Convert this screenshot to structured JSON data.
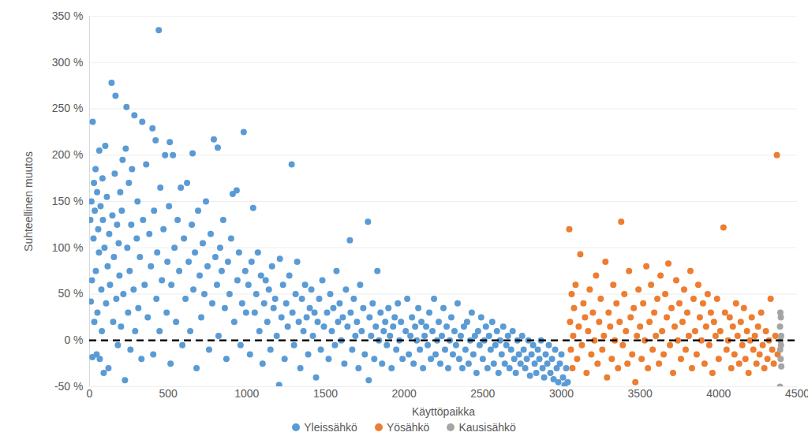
{
  "chart_data": {
    "type": "scatter",
    "x_label": "Käyttöpaikka",
    "y_label": "Suhteellinen muutos",
    "xlim": [
      0,
      4500
    ],
    "xticks": [
      0,
      500,
      1000,
      1500,
      2000,
      2500,
      3000,
      3500,
      4000,
      4500
    ],
    "ylim": [
      -50,
      350
    ],
    "yticks": [
      {
        "value": -50,
        "label": "-50 %"
      },
      {
        "value": 0,
        "label": "0 %"
      },
      {
        "value": 50,
        "label": "50 %"
      },
      {
        "value": 100,
        "label": "100 %"
      },
      {
        "value": 150,
        "label": "150 %"
      },
      {
        "value": 200,
        "label": "200 %"
      },
      {
        "value": 250,
        "label": "250 %"
      },
      {
        "value": 300,
        "label": "300 %"
      },
      {
        "value": 350,
        "label": "350 %"
      }
    ],
    "grid": true,
    "legend": "bottom",
    "series": [
      {
        "name": "Yleissähkö",
        "color": "#5b9bd5",
        "marker": "circle",
        "x": [
          5,
          8,
          12,
          15,
          18,
          20,
          25,
          28,
          30,
          33,
          38,
          40,
          45,
          48,
          50,
          55,
          60,
          62,
          65,
          70,
          75,
          78,
          82,
          85,
          90,
          95,
          100,
          105,
          110,
          115,
          120,
          125,
          130,
          140,
          145,
          150,
          155,
          160,
          165,
          170,
          175,
          180,
          185,
          190,
          195,
          200,
          205,
          210,
          215,
          225,
          230,
          235,
          240,
          245,
          250,
          255,
          260,
          265,
          270,
          280,
          285,
          290,
          300,
          305,
          310,
          320,
          330,
          335,
          340,
          350,
          360,
          370,
          380,
          390,
          400,
          405,
          410,
          420,
          425,
          430,
          440,
          445,
          450,
          460,
          470,
          480,
          490,
          495,
          505,
          510,
          515,
          520,
          530,
          540,
          550,
          560,
          570,
          580,
          590,
          600,
          610,
          620,
          630,
          640,
          650,
          655,
          660,
          670,
          680,
          690,
          700,
          710,
          720,
          730,
          740,
          750,
          760,
          770,
          780,
          790,
          800,
          810,
          815,
          820,
          830,
          840,
          850,
          860,
          870,
          880,
          890,
          900,
          910,
          920,
          935,
          940,
          950,
          960,
          970,
          980,
          990,
          995,
          1010,
          1020,
          1030,
          1040,
          1050,
          1060,
          1070,
          1080,
          1090,
          1100,
          1110,
          1120,
          1130,
          1140,
          1150,
          1160,
          1170,
          1180,
          1190,
          1205,
          1210,
          1220,
          1230,
          1240,
          1250,
          1260,
          1270,
          1285,
          1290,
          1300,
          1310,
          1320,
          1330,
          1340,
          1350,
          1360,
          1370,
          1380,
          1390,
          1400,
          1410,
          1420,
          1430,
          1440,
          1450,
          1460,
          1470,
          1480,
          1490,
          1510,
          1520,
          1530,
          1540,
          1550,
          1560,
          1570,
          1580,
          1590,
          1600,
          1610,
          1620,
          1630,
          1640,
          1655,
          1660,
          1670,
          1680,
          1690,
          1700,
          1710,
          1720,
          1730,
          1740,
          1750,
          1770,
          1775,
          1780,
          1790,
          1800,
          1810,
          1820,
          1830,
          1840,
          1850,
          1860,
          1870,
          1880,
          1890,
          1900,
          1910,
          1920,
          1930,
          1940,
          1950,
          1960,
          1970,
          1980,
          1990,
          2010,
          2020,
          2030,
          2040,
          2050,
          2060,
          2070,
          2080,
          2090,
          2100,
          2110,
          2120,
          2130,
          2140,
          2150,
          2160,
          2170,
          2180,
          2190,
          2200,
          2210,
          2220,
          2230,
          2240,
          2250,
          2260,
          2270,
          2280,
          2290,
          2300,
          2310,
          2320,
          2330,
          2340,
          2350,
          2360,
          2370,
          2380,
          2390,
          2400,
          2410,
          2420,
          2430,
          2440,
          2450,
          2460,
          2470,
          2480,
          2490,
          2500,
          2510,
          2520,
          2530,
          2540,
          2550,
          2560,
          2570,
          2580,
          2590,
          2600,
          2610,
          2620,
          2630,
          2640,
          2650,
          2660,
          2670,
          2680,
          2690,
          2700,
          2710,
          2720,
          2730,
          2740,
          2750,
          2760,
          2770,
          2780,
          2790,
          2800,
          2810,
          2820,
          2830,
          2840,
          2850,
          2860,
          2870,
          2880,
          2890,
          2900,
          2910,
          2920,
          2930,
          2940,
          2950,
          2960,
          2970,
          2980,
          2990,
          3000,
          3010,
          3020,
          3030,
          3040
        ],
        "values": [
          130,
          42,
          150,
          65,
          -18,
          236,
          110,
          170,
          20,
          140,
          185,
          75,
          -15,
          160,
          30,
          120,
          95,
          205,
          -20,
          145,
          55,
          10,
          175,
          130,
          -35,
          100,
          210,
          40,
          155,
          80,
          -30,
          115,
          60,
          278,
          135,
          20,
          90,
          180,
          264,
          45,
          125,
          -5,
          105,
          70,
          160,
          15,
          140,
          195,
          50,
          -43,
          207,
          252,
          100,
          30,
          170,
          75,
          -10,
          125,
          185,
          55,
          243,
          10,
          110,
          150,
          35,
          90,
          -20,
          236,
          130,
          60,
          190,
          25,
          115,
          80,
          229,
          -15,
          140,
          216,
          45,
          95,
          335,
          10,
          165,
          65,
          120,
          200,
          30,
          85,
          145,
          214,
          -25,
          60,
          200,
          100,
          20,
          130,
          75,
          165,
          -5,
          110,
          45,
          170,
          85,
          10,
          125,
          202,
          55,
          95,
          -30,
          140,
          70,
          25,
          105,
          50,
          150,
          80,
          -10,
          115,
          40,
          217,
          90,
          60,
          208,
          5,
          100,
          75,
          130,
          35,
          -20,
          85,
          50,
          110,
          158,
          20,
          162,
          65,
          95,
          -5,
          40,
          225,
          75,
          30,
          60,
          -15,
          85,
          143,
          30,
          50,
          95,
          10,
          70,
          -25,
          40,
          65,
          20,
          55,
          -10,
          80,
          35,
          45,
          5,
          -48,
          88,
          25,
          60,
          -20,
          40,
          15,
          70,
          190,
          30,
          -5,
          50,
          85,
          20,
          -30,
          45,
          10,
          60,
          25,
          -15,
          35,
          55,
          5,
          30,
          -40,
          20,
          45,
          -10,
          65,
          15,
          30,
          -20,
          50,
          10,
          35,
          -5,
          75,
          20,
          40,
          0,
          25,
          -25,
          55,
          15,
          108,
          30,
          -10,
          45,
          5,
          20,
          -30,
          60,
          10,
          35,
          -15,
          128,
          -43,
          25,
          5,
          40,
          -20,
          15,
          75,
          0,
          30,
          -25,
          10,
          20,
          -5,
          35,
          5,
          -30,
          15,
          25,
          -10,
          40,
          0,
          20,
          -20,
          10,
          45,
          -15,
          5,
          25,
          -25,
          15,
          0,
          35,
          -10,
          20,
          -30,
          5,
          15,
          -5,
          30,
          -20,
          10,
          45,
          -15,
          0,
          20,
          -25,
          5,
          35,
          -10,
          15,
          -30,
          0,
          25,
          -15,
          10,
          -5,
          40,
          -20,
          5,
          -30,
          15,
          -10,
          20,
          -25,
          0,
          30,
          -15,
          5,
          -35,
          10,
          -5,
          25,
          -20,
          0,
          15,
          -30,
          5,
          -10,
          20,
          -25,
          -5,
          10,
          -35,
          0,
          -15,
          15,
          -25,
          -5,
          5,
          -30,
          -10,
          10,
          -20,
          -35,
          0,
          -15,
          -25,
          5,
          -10,
          -30,
          -20,
          0,
          -38,
          -15,
          -5,
          -25,
          -35,
          -10,
          -20,
          0,
          -30,
          -40,
          -15,
          -25,
          -5,
          -35,
          -20,
          -42,
          -10,
          -30,
          -45,
          -25,
          -15,
          -40,
          -48,
          -30,
          -45
        ]
      },
      {
        "name": "Yösähkö",
        "color": "#ed7d31",
        "marker": "circle",
        "x": [
          3050,
          3055,
          3060,
          3065,
          3070,
          3075,
          3080,
          3090,
          3100,
          3110,
          3120,
          3130,
          3140,
          3150,
          3160,
          3170,
          3180,
          3190,
          3200,
          3210,
          3220,
          3230,
          3240,
          3250,
          3260,
          3270,
          3280,
          3290,
          3300,
          3310,
          3320,
          3330,
          3340,
          3350,
          3360,
          3370,
          3380,
          3390,
          3400,
          3410,
          3420,
          3430,
          3440,
          3450,
          3460,
          3470,
          3480,
          3490,
          3500,
          3510,
          3520,
          3530,
          3540,
          3550,
          3560,
          3570,
          3580,
          3590,
          3600,
          3610,
          3620,
          3630,
          3640,
          3650,
          3660,
          3670,
          3680,
          3690,
          3700,
          3710,
          3720,
          3730,
          3740,
          3750,
          3760,
          3770,
          3780,
          3790,
          3800,
          3810,
          3820,
          3830,
          3840,
          3850,
          3860,
          3870,
          3880,
          3890,
          3900,
          3910,
          3920,
          3930,
          3940,
          3950,
          3960,
          3970,
          3980,
          3990,
          4000,
          4010,
          4030,
          4040,
          4050,
          4060,
          4070,
          4080,
          4090,
          4100,
          4110,
          4120,
          4130,
          4140,
          4150,
          4160,
          4170,
          4180,
          4190,
          4200,
          4210,
          4220,
          4230,
          4240,
          4250,
          4260,
          4270,
          4280,
          4290,
          4300,
          4310,
          4320,
          4330,
          4340,
          4350,
          4360,
          4370,
          4375
        ],
        "values": [
          120,
          20,
          -10,
          50,
          -30,
          5,
          35,
          60,
          -20,
          15,
          93,
          -5,
          40,
          25,
          -35,
          10,
          55,
          -15,
          30,
          0,
          70,
          -25,
          20,
          45,
          -10,
          5,
          85,
          -40,
          30,
          15,
          -20,
          60,
          0,
          40,
          -30,
          20,
          128,
          -5,
          50,
          10,
          -25,
          75,
          25,
          -15,
          35,
          -45,
          5,
          55,
          15,
          -20,
          40,
          0,
          80,
          -30,
          20,
          60,
          -10,
          30,
          5,
          45,
          -25,
          70,
          10,
          -15,
          50,
          25,
          83,
          -5,
          35,
          -35,
          15,
          65,
          0,
          40,
          -20,
          20,
          55,
          -10,
          30,
          5,
          75,
          -30,
          45,
          10,
          -15,
          60,
          25,
          0,
          40,
          -25,
          15,
          50,
          -5,
          30,
          -35,
          20,
          5,
          45,
          -20,
          10,
          122,
          30,
          -10,
          0,
          25,
          -30,
          15,
          -15,
          40,
          5,
          -25,
          20,
          -5,
          35,
          -20,
          10,
          -35,
          0,
          25,
          -10,
          5,
          -25,
          15,
          -15,
          30,
          -5,
          -30,
          10,
          -20,
          0,
          45,
          -10,
          -25,
          5,
          200,
          -15
        ]
      },
      {
        "name": "Kausisähkö",
        "color": "#a5a5a5",
        "marker": "circle",
        "x": [
          4390,
          4390,
          4391,
          4392,
          4393,
          4394,
          4395,
          4396,
          4397,
          4398
        ],
        "values": [
          15,
          -50,
          -10,
          30,
          0,
          -20,
          25,
          -5,
          5,
          -28
        ]
      }
    ]
  }
}
